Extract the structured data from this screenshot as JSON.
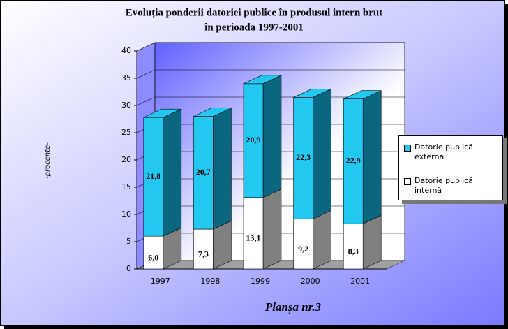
{
  "chart_data": {
    "type": "bar3d_stacked",
    "title": "Evoluția ponderii datoriei publice în produsul intern brut",
    "subtitle": "în perioada 1997-2001",
    "y_label": "-procente-",
    "caption": "Planșa nr.3",
    "categories": [
      "1997",
      "1998",
      "1999",
      "2000",
      "2001"
    ],
    "series": [
      {
        "name": "Datorie publică internă",
        "color": "#ffffff",
        "side_color": "#808080",
        "values": [
          6.0,
          7.3,
          13.1,
          9.2,
          8.3
        ],
        "value_labels": [
          "6,0",
          "7,3",
          "13,1",
          "9,2",
          "8,3"
        ]
      },
      {
        "name": "Datorie publică externă",
        "color": "#22c8f0",
        "side_color": "#0b6680",
        "values": [
          21.8,
          20.7,
          20.9,
          22.3,
          22.9
        ],
        "value_labels": [
          "21,8",
          "20,7",
          "20,9",
          "22,3",
          "22,9"
        ]
      }
    ],
    "ylim": [
      0,
      40
    ],
    "yticks": [
      0,
      5,
      10,
      15,
      20,
      25,
      30,
      35,
      40
    ],
    "grid": true,
    "legend": "right"
  }
}
